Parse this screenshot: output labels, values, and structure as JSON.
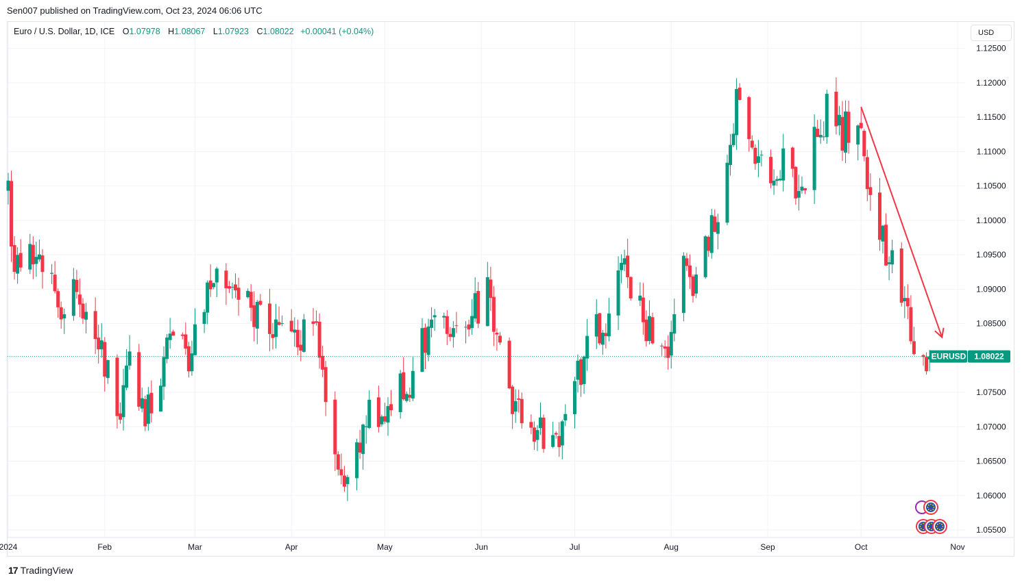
{
  "header": {
    "published": "Sen007 published on TradingView.com, Oct 23, 2024 06:06 UTC"
  },
  "legend": {
    "symbol": "Euro / U.S. Dollar, 1D, ICE",
    "open_label": "O",
    "open": "1.07978",
    "high_label": "H",
    "high": "1.08067",
    "low_label": "L",
    "low": "1.07923",
    "close_label": "C",
    "close": "1.08022",
    "change": "+0.00041 (+0.04%)"
  },
  "currency_button": "USD",
  "price_tag": {
    "symbol": "EURUSD",
    "value": "1.08022"
  },
  "brand": {
    "name": "TradingView",
    "logo": "17"
  },
  "colors": {
    "up": "#089981",
    "down": "#f23645",
    "arrow": "#f23645",
    "grid": "#f0f3fa"
  },
  "chart_data": {
    "type": "candlestick",
    "ylim": [
      1.0535,
      1.1275
    ],
    "y_ticks": [
      "1.12500",
      "1.12000",
      "1.11500",
      "1.11000",
      "1.10500",
      "1.10000",
      "1.09500",
      "1.09000",
      "1.08500",
      "1.08000",
      "1.07500",
      "1.07000",
      "1.06500",
      "1.06000",
      "1.05500"
    ],
    "x_ticks": [
      "2024",
      "Feb",
      "Mar",
      "Apr",
      "May",
      "Jun",
      "Jul",
      "Aug",
      "Sep",
      "Oct",
      "Nov"
    ],
    "x_tick_dates": [
      "2024-01-01",
      "2024-02-01",
      "2024-03-01",
      "2024-04-01",
      "2024-05-01",
      "2024-06-01",
      "2024-07-01",
      "2024-08-01",
      "2024-09-01",
      "2024-10-01",
      "2024-11-01"
    ],
    "last_close": 1.08022,
    "waypoints": [
      [
        "2024-01-01",
        1.1045
      ],
      [
        "2024-01-02",
        1.094
      ],
      [
        "2024-01-08",
        1.096
      ],
      [
        "2024-01-12",
        1.095
      ],
      [
        "2024-01-17",
        1.088
      ],
      [
        "2024-01-24",
        1.089
      ],
      [
        "2024-02-02",
        1.079
      ],
      [
        "2024-02-06",
        1.073
      ],
      [
        "2024-02-09",
        1.078
      ],
      [
        "2024-02-14",
        1.071
      ],
      [
        "2024-02-22",
        1.083
      ],
      [
        "2024-02-28",
        1.081
      ],
      [
        "2024-03-08",
        1.094
      ],
      [
        "2024-03-12",
        1.092
      ],
      [
        "2024-03-19",
        1.087
      ],
      [
        "2024-03-27",
        1.083
      ],
      [
        "2024-04-05",
        1.084
      ],
      [
        "2024-04-09",
        1.086
      ],
      [
        "2024-04-16",
        1.062
      ],
      [
        "2024-04-19",
        1.065
      ],
      [
        "2024-04-26",
        1.071
      ],
      [
        "2024-05-02",
        1.073
      ],
      [
        "2024-05-10",
        1.077
      ],
      [
        "2024-05-16",
        1.087
      ],
      [
        "2024-05-23",
        1.082
      ],
      [
        "2024-06-03",
        1.09
      ],
      [
        "2024-06-07",
        1.08
      ],
      [
        "2024-06-14",
        1.07
      ],
      [
        "2024-06-26",
        1.068
      ],
      [
        "2024-07-05",
        1.081
      ],
      [
        "2024-07-11",
        1.086
      ],
      [
        "2024-07-17",
        1.094
      ],
      [
        "2024-07-24",
        1.085
      ],
      [
        "2024-07-31",
        1.082
      ],
      [
        "2024-08-05",
        1.095
      ],
      [
        "2024-08-08",
        1.092
      ],
      [
        "2024-08-16",
        1.102
      ],
      [
        "2024-08-23",
        1.119
      ],
      [
        "2024-08-29",
        1.108
      ],
      [
        "2024-09-03",
        1.105
      ],
      [
        "2024-09-06",
        1.111
      ],
      [
        "2024-09-11",
        1.102
      ],
      [
        "2024-09-17",
        1.113
      ],
      [
        "2024-09-20",
        1.116
      ],
      [
        "2024-09-25",
        1.113
      ],
      [
        "2024-09-30",
        1.114
      ],
      [
        "2024-10-03",
        1.104
      ],
      [
        "2024-10-08",
        1.098
      ],
      [
        "2024-10-10",
        1.094
      ],
      [
        "2024-10-14",
        1.091
      ],
      [
        "2024-10-17",
        1.084
      ],
      [
        "2024-10-21",
        1.0815
      ],
      [
        "2024-10-22",
        1.0798
      ],
      [
        "2024-10-23",
        1.08022
      ]
    ],
    "annotation": {
      "type": "arrow",
      "from": [
        "2024-10-01",
        1.1165
      ],
      "to": [
        "2024-10-27",
        1.083
      ]
    },
    "grid": true
  }
}
